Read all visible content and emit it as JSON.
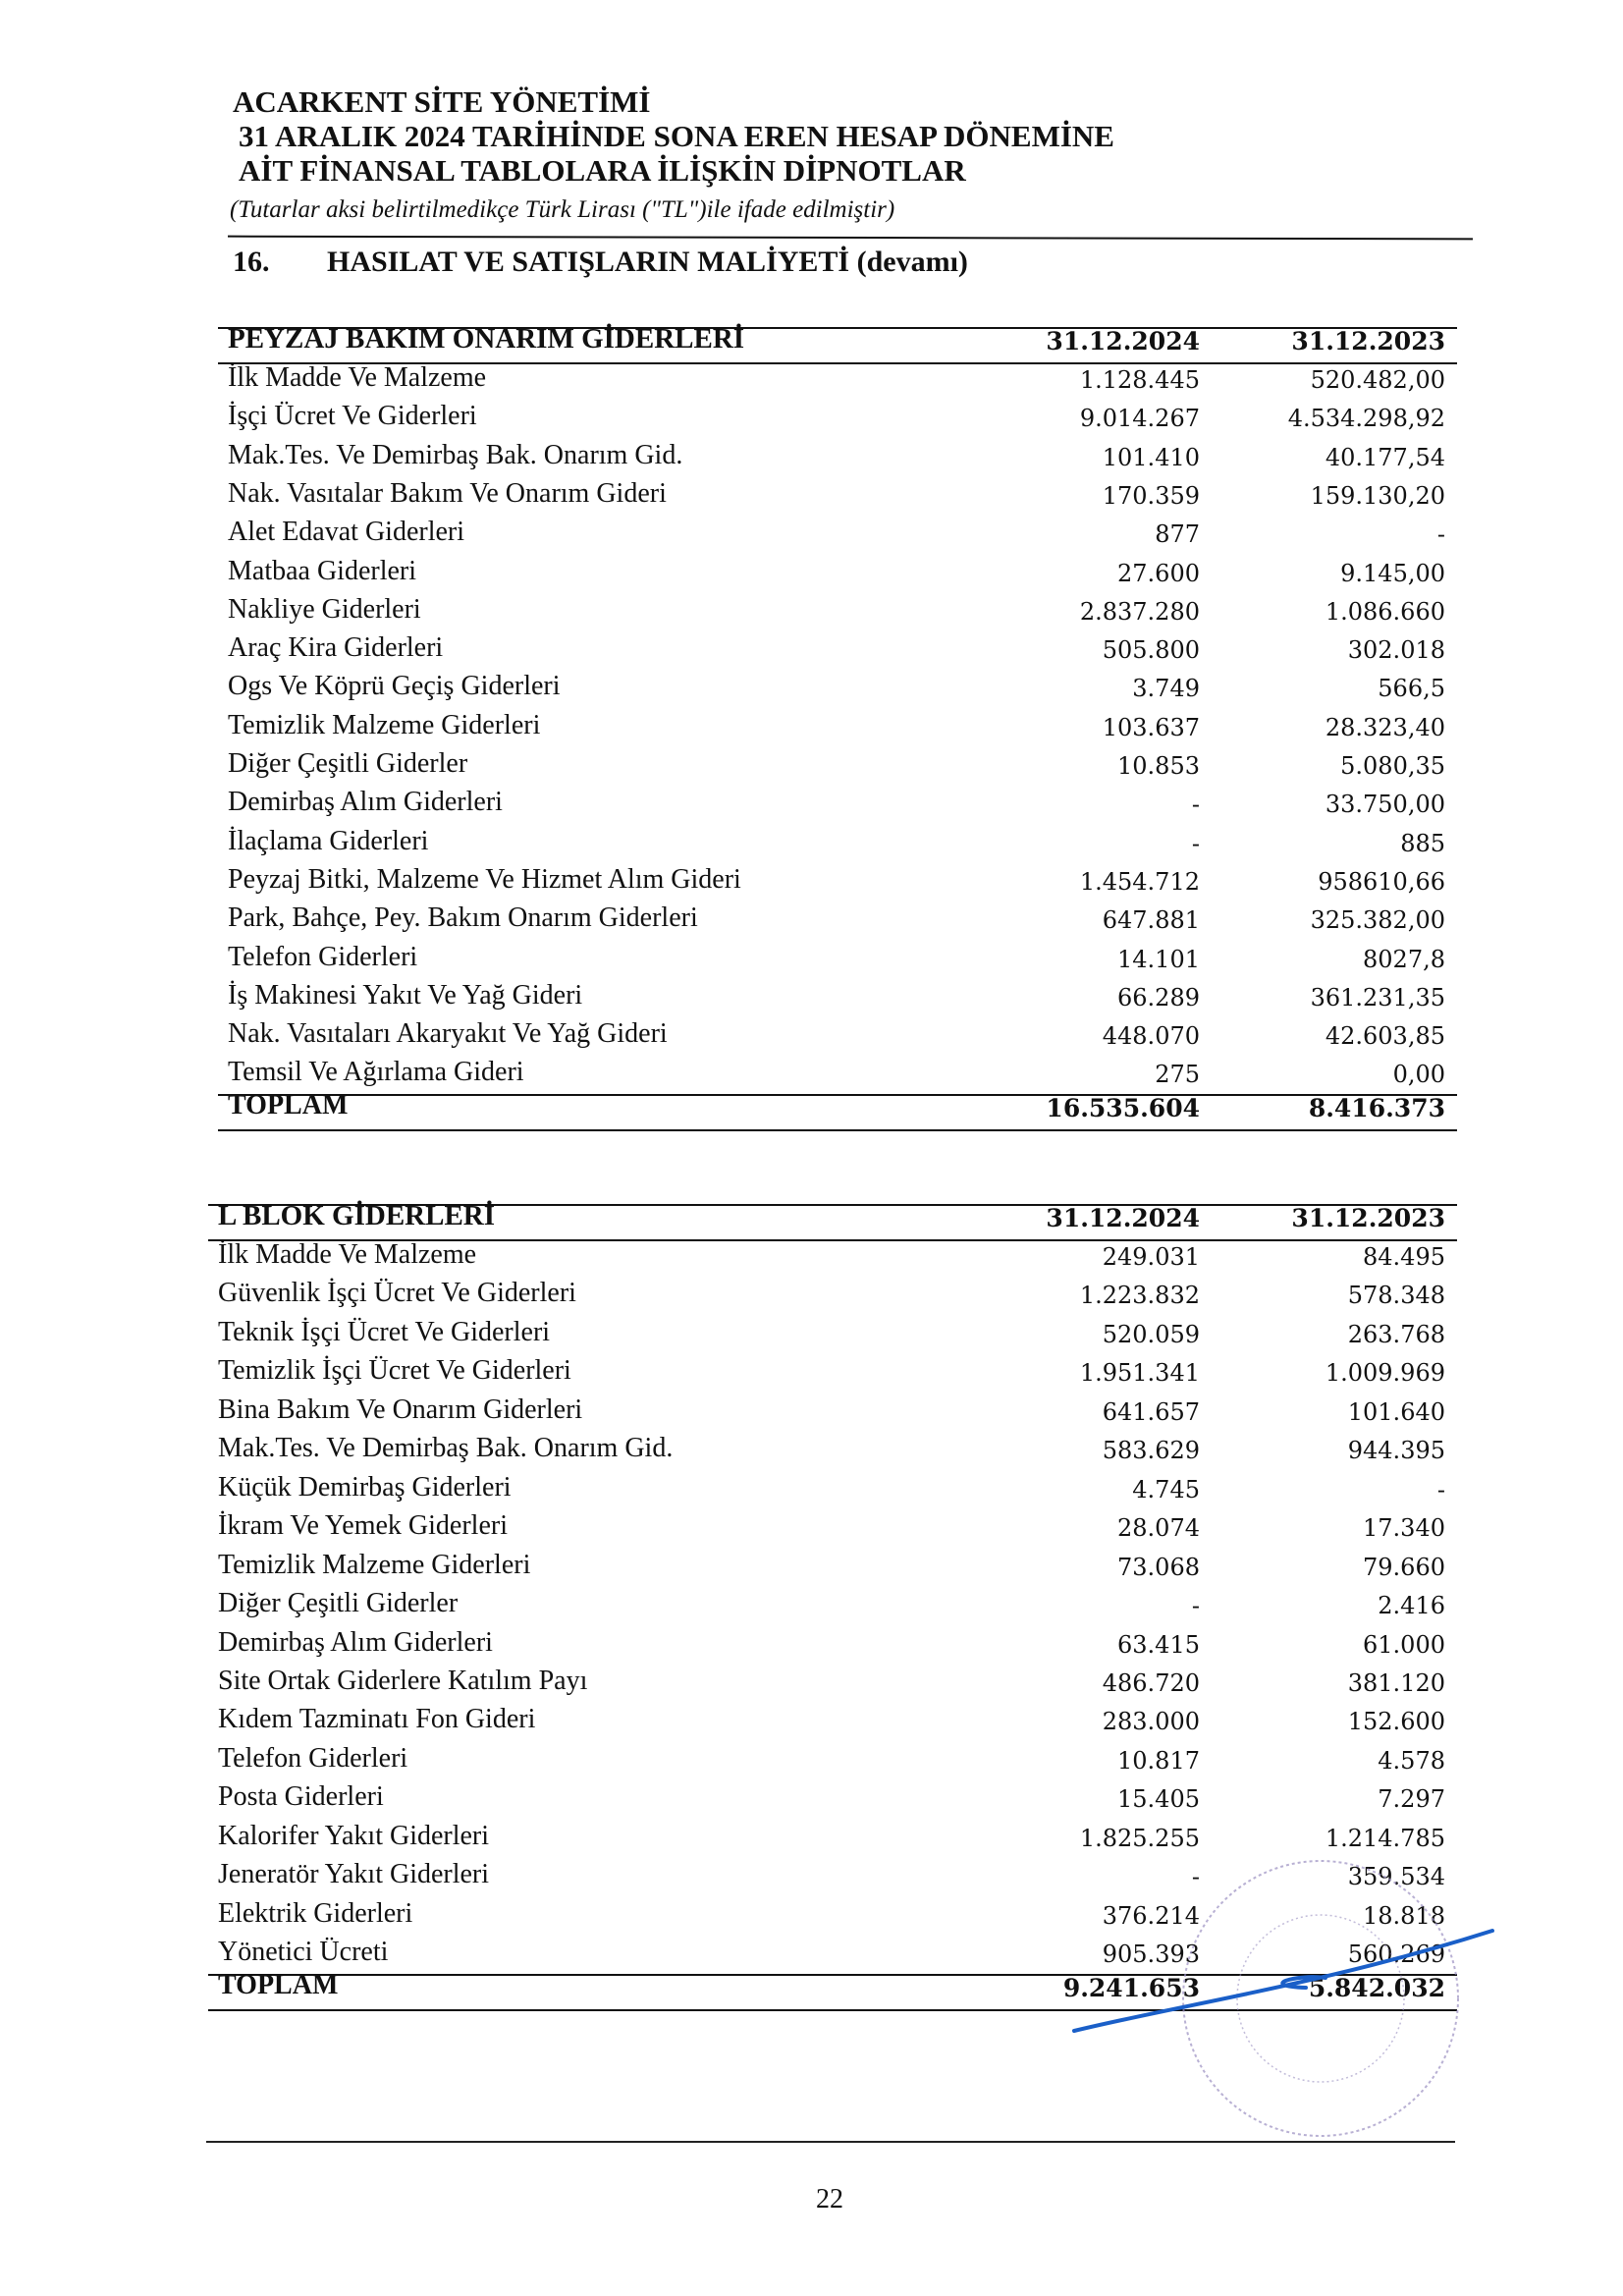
{
  "header": {
    "company": "ACARKENT SİTE YÖNETİMİ",
    "line2": "31 ARALIK 2024 TARİHİNDE SONA EREN HESAP DÖNEMİNE",
    "line3": "AİT FİNANSAL TABLOLARA İLİŞKİN DİPNOTLAR",
    "subtitle": "(Tutarlar aksi belirtilmedikçe Türk Lirası (\"TL\")ile ifade edilmiştir)"
  },
  "section": {
    "number": "16.",
    "title": "HASILAT VE SATIŞLARIN MALİYETİ",
    "suffix": "(devamı)"
  },
  "tables": [
    {
      "title": "PEYZAJ BAKIM ONARIM GİDERLERİ",
      "col1": "31.12.2024",
      "col2": "31.12.2023",
      "rows": [
        [
          "İlk Madde Ve Malzeme",
          "1.128.445",
          "520.482,00"
        ],
        [
          "İşçi Ücret Ve Giderleri",
          "9.014.267",
          "4.534.298,92"
        ],
        [
          "Mak.Tes. Ve Demirbaş Bak. Onarım Gid.",
          "101.410",
          "40.177,54"
        ],
        [
          "Nak. Vasıtalar Bakım Ve Onarım Gideri",
          "170.359",
          "159.130,20"
        ],
        [
          "Alet Edavat Giderleri",
          "877",
          "-"
        ],
        [
          "Matbaa Giderleri",
          "27.600",
          "9.145,00"
        ],
        [
          "Nakliye Giderleri",
          "2.837.280",
          "1.086.660"
        ],
        [
          "Araç Kira Giderleri",
          "505.800",
          "302.018"
        ],
        [
          "Ogs Ve Köprü Geçiş Giderleri",
          "3.749",
          "566,5"
        ],
        [
          "Temizlik Malzeme Giderleri",
          "103.637",
          "28.323,40"
        ],
        [
          "Diğer Çeşitli Giderler",
          "10.853",
          "5.080,35"
        ],
        [
          "Demirbaş Alım Giderleri",
          "-",
          "33.750,00"
        ],
        [
          "İlaçlama Giderleri",
          "-",
          "885"
        ],
        [
          "Peyzaj Bitki, Malzeme Ve Hizmet Alım Gideri",
          "1.454.712",
          "958610,66"
        ],
        [
          "Park, Bahçe, Pey. Bakım Onarım Giderleri",
          "647.881",
          "325.382,00"
        ],
        [
          "Telefon Giderleri",
          "14.101",
          "8027,8"
        ],
        [
          "İş Makinesi Yakıt Ve Yağ Gideri",
          "66.289",
          "361.231,35"
        ],
        [
          "Nak. Vasıtaları Akaryakıt Ve Yağ Gideri",
          "448.070",
          "42.603,85"
        ],
        [
          "Temsil Ve Ağırlama Gideri",
          "275",
          "0,00"
        ]
      ],
      "total": [
        "TOPLAM",
        "16.535.604",
        "8.416.373"
      ]
    },
    {
      "title": "L BLOK GİDERLERİ",
      "col1": "31.12.2024",
      "col2": "31.12.2023",
      "rows": [
        [
          "İlk Madde Ve Malzeme",
          "249.031",
          "84.495"
        ],
        [
          "Güvenlik İşçi Ücret Ve Giderleri",
          "1.223.832",
          "578.348"
        ],
        [
          "Teknik İşçi Ücret Ve Giderleri",
          "520.059",
          "263.768"
        ],
        [
          "Temizlik İşçi Ücret Ve Giderleri",
          "1.951.341",
          "1.009.969"
        ],
        [
          "Bina Bakım Ve Onarım Giderleri",
          "641.657",
          "101.640"
        ],
        [
          "Mak.Tes. Ve Demirbaş Bak. Onarım Gid.",
          "583.629",
          "944.395"
        ],
        [
          "Küçük Demirbaş Giderleri",
          "4.745",
          "-"
        ],
        [
          "İkram Ve Yemek Giderleri",
          "28.074",
          "17.340"
        ],
        [
          "Temizlik Malzeme Giderleri",
          "73.068",
          "79.660"
        ],
        [
          "Diğer Çeşitli Giderler",
          "-",
          "2.416"
        ],
        [
          "Demirbaş Alım Giderleri",
          "63.415",
          "61.000"
        ],
        [
          "Site Ortak Giderlere Katılım Payı",
          "486.720",
          "381.120"
        ],
        [
          "Kıdem Tazminatı Fon Gideri",
          "283.000",
          "152.600"
        ],
        [
          "Telefon Giderleri",
          "10.817",
          "4.578"
        ],
        [
          "Posta Giderleri",
          "15.405",
          "7.297"
        ],
        [
          "Kalorifer Yakıt Giderleri",
          "1.825.255",
          "1.214.785"
        ],
        [
          "Jeneratör Yakıt Giderleri",
          "-",
          "359.534"
        ],
        [
          "Elektrik Giderleri",
          "376.214",
          "18.818"
        ],
        [
          "Yönetici Ücreti",
          "905.393",
          "560.269"
        ]
      ],
      "total": [
        "TOPLAM",
        "9.241.653",
        "5.842.032"
      ]
    }
  ],
  "stamp": {
    "text": "T.C."
  },
  "colors": {
    "signature": "#1a5fc8",
    "stamp": "#9a8fc0"
  },
  "page_number": "22"
}
